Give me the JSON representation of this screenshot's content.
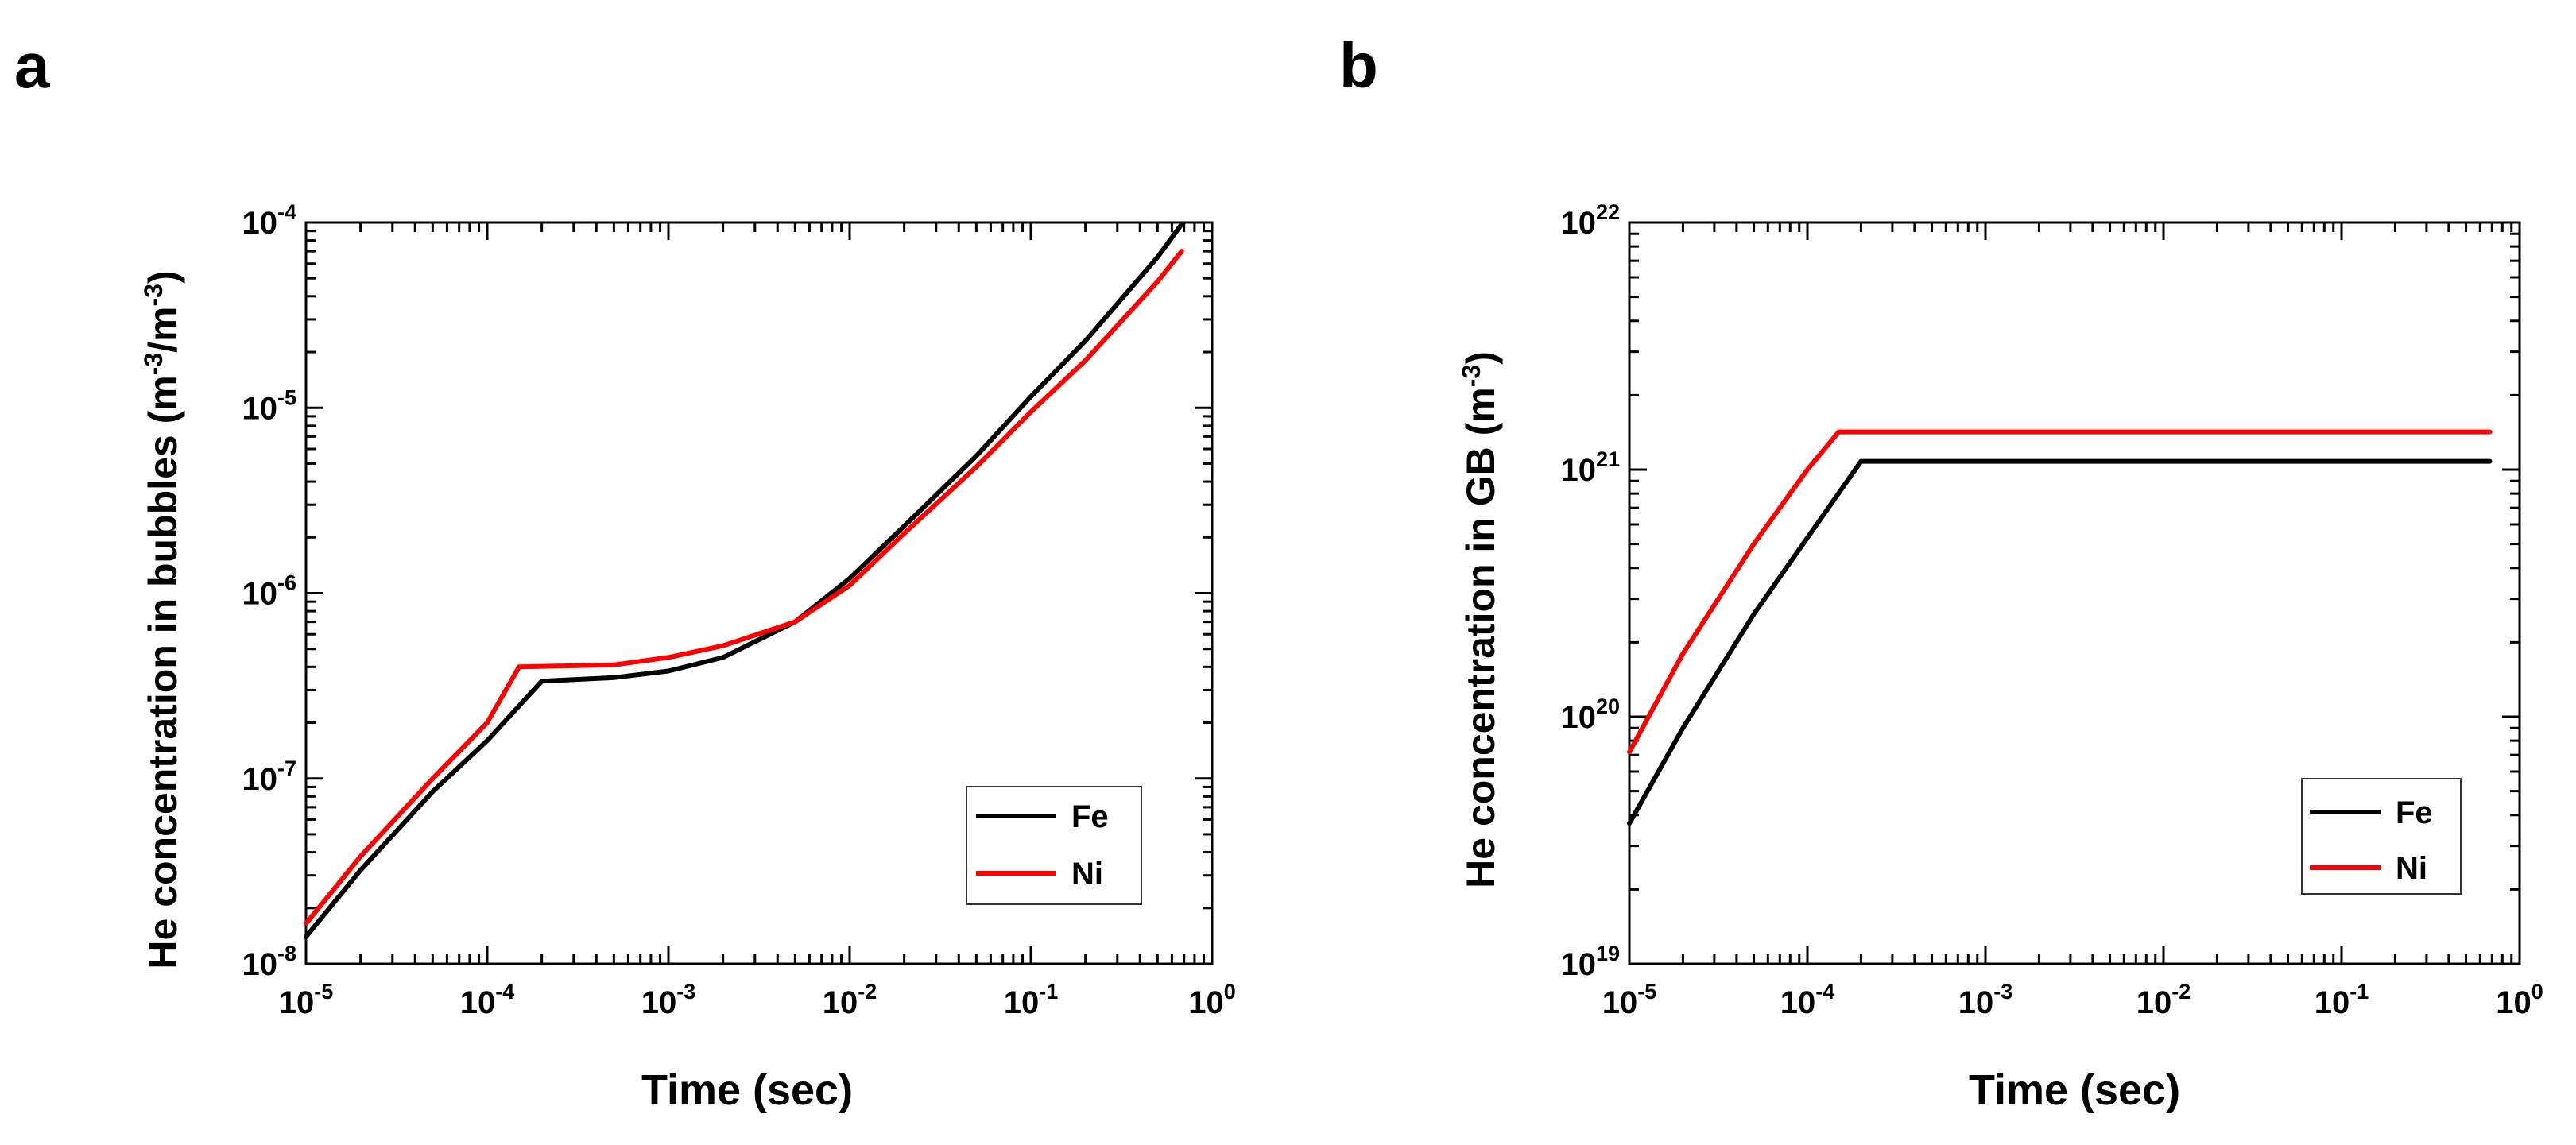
{
  "panels": [
    {
      "chart_data": {
        "type": "line",
        "panel_label": "a",
        "xscale": "log",
        "yscale": "log",
        "xlim": [
          1e-05,
          1
        ],
        "ylim": [
          1e-08,
          0.0001
        ],
        "xlabel": "Time (sec)",
        "ylabel": "He concentration in bubbles (m⁻³/m⁻³)",
        "ylabel_parts": {
          "main": "He concentration in bubbles (m",
          "sup1": "-3",
          "mid": "/m",
          "sup2": "-3",
          "end": ")"
        },
        "x_ticks": [
          {
            "base": "10",
            "exp": "-5",
            "value": 1e-05
          },
          {
            "base": "10",
            "exp": "-4",
            "value": 0.0001
          },
          {
            "base": "10",
            "exp": "-3",
            "value": 0.001
          },
          {
            "base": "10",
            "exp": "-2",
            "value": 0.01
          },
          {
            "base": "10",
            "exp": "-1",
            "value": 0.1
          },
          {
            "base": "10",
            "exp": "0",
            "value": 1
          }
        ],
        "y_ticks": [
          {
            "base": "10",
            "exp": "-8",
            "value": 1e-08
          },
          {
            "base": "10",
            "exp": "-7",
            "value": 1e-07
          },
          {
            "base": "10",
            "exp": "-6",
            "value": 1e-06
          },
          {
            "base": "10",
            "exp": "-5",
            "value": 1e-05
          },
          {
            "base": "10",
            "exp": "-4",
            "value": 0.0001
          }
        ],
        "legend": {
          "position": "bottom-right"
        },
        "series": [
          {
            "name": "Fe",
            "color": "#000000",
            "points": [
              [
                1e-05,
                1.4e-08
              ],
              [
                2e-05,
                3.2e-08
              ],
              [
                5e-05,
                8.5e-08
              ],
              [
                0.0001,
                1.6e-07
              ],
              [
                0.0002,
                3.35e-07
              ],
              [
                0.0005,
                3.5e-07
              ],
              [
                0.001,
                3.8e-07
              ],
              [
                0.002,
                4.5e-07
              ],
              [
                0.005,
                7e-07
              ],
              [
                0.01,
                1.2e-06
              ],
              [
                0.02,
                2.3e-06
              ],
              [
                0.05,
                5.5e-06
              ],
              [
                0.1,
                1.15e-05
              ],
              [
                0.2,
                2.3e-05
              ],
              [
                0.5,
                6.5e-05
              ],
              [
                0.68,
                9.8e-05
              ]
            ]
          },
          {
            "name": "Ni",
            "color": "#ff0000",
            "points": [
              [
                1e-05,
                1.65e-08
              ],
              [
                2e-05,
                3.8e-08
              ],
              [
                5e-05,
                1e-07
              ],
              [
                0.0001,
                2e-07
              ],
              [
                0.00015,
                4e-07
              ],
              [
                0.0005,
                4.1e-07
              ],
              [
                0.001,
                4.5e-07
              ],
              [
                0.002,
                5.2e-07
              ],
              [
                0.005,
                7e-07
              ],
              [
                0.01,
                1.1e-06
              ],
              [
                0.02,
                2.1e-06
              ],
              [
                0.05,
                4.8e-06
              ],
              [
                0.1,
                9.5e-06
              ],
              [
                0.2,
                1.8e-05
              ],
              [
                0.5,
                4.8e-05
              ],
              [
                0.68,
                7e-05
              ]
            ]
          }
        ]
      }
    },
    {
      "chart_data": {
        "type": "line",
        "panel_label": "b",
        "xscale": "log",
        "yscale": "log",
        "xlim": [
          1e-05,
          1
        ],
        "ylim": [
          1e+19,
          1e+22
        ],
        "xlabel": "Time (sec)",
        "ylabel": "He concentration in GB (m⁻³)",
        "ylabel_parts": {
          "main": "He concentration in GB (m",
          "sup1": "-3",
          "mid": "",
          "sup2": "",
          "end": ")"
        },
        "x_ticks": [
          {
            "base": "10",
            "exp": "-5",
            "value": 1e-05
          },
          {
            "base": "10",
            "exp": "-4",
            "value": 0.0001
          },
          {
            "base": "10",
            "exp": "-3",
            "value": 0.001
          },
          {
            "base": "10",
            "exp": "-2",
            "value": 0.01
          },
          {
            "base": "10",
            "exp": "-1",
            "value": 0.1
          },
          {
            "base": "10",
            "exp": "0",
            "value": 1
          }
        ],
        "y_ticks": [
          {
            "base": "10",
            "exp": "19",
            "value": 1e+19
          },
          {
            "base": "10",
            "exp": "20",
            "value": 1e+20
          },
          {
            "base": "10",
            "exp": "21",
            "value": 1e+21
          },
          {
            "base": "10",
            "exp": "22",
            "value": 1e+22
          }
        ],
        "legend": {
          "position": "bottom-right"
        },
        "series": [
          {
            "name": "Fe",
            "color": "#000000",
            "points": [
              [
                1e-05,
                3.7e+19
              ],
              [
                2e-05,
                9e+19
              ],
              [
                5e-05,
                2.6e+20
              ],
              [
                0.0001,
                5.3e+20
              ],
              [
                0.0002,
                1.08e+21
              ],
              [
                0.001,
                1.08e+21
              ],
              [
                0.01,
                1.08e+21
              ],
              [
                0.1,
                1.08e+21
              ],
              [
                0.68,
                1.08e+21
              ]
            ]
          },
          {
            "name": "Ni",
            "color": "#ff0000",
            "points": [
              [
                1e-05,
                7.2e+19
              ],
              [
                2e-05,
                1.8e+20
              ],
              [
                5e-05,
                5e+20
              ],
              [
                0.0001,
                1e+21
              ],
              [
                0.00015,
                1.42e+21
              ],
              [
                0.001,
                1.42e+21
              ],
              [
                0.01,
                1.42e+21
              ],
              [
                0.1,
                1.42e+21
              ],
              [
                0.68,
                1.42e+21
              ]
            ]
          }
        ]
      }
    }
  ]
}
